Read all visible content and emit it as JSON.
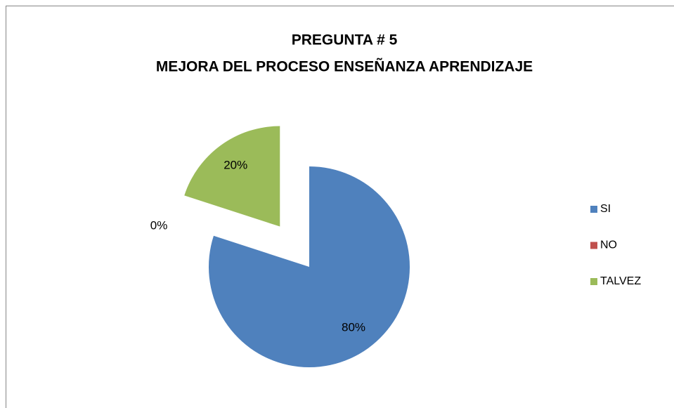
{
  "chart_data": {
    "type": "pie",
    "title": "PREGUNTA # 5",
    "subtitle": "MEJORA DEL PROCESO ENSEÑANZA APRENDIZAJE",
    "categories": [
      "SI",
      "NO",
      "TALVEZ"
    ],
    "values": [
      80,
      0,
      20
    ],
    "value_labels": [
      "80%",
      "0%",
      "20%"
    ],
    "colors": [
      "#4f81bd",
      "#c0504d",
      "#9bbb59"
    ],
    "legend": "right"
  }
}
